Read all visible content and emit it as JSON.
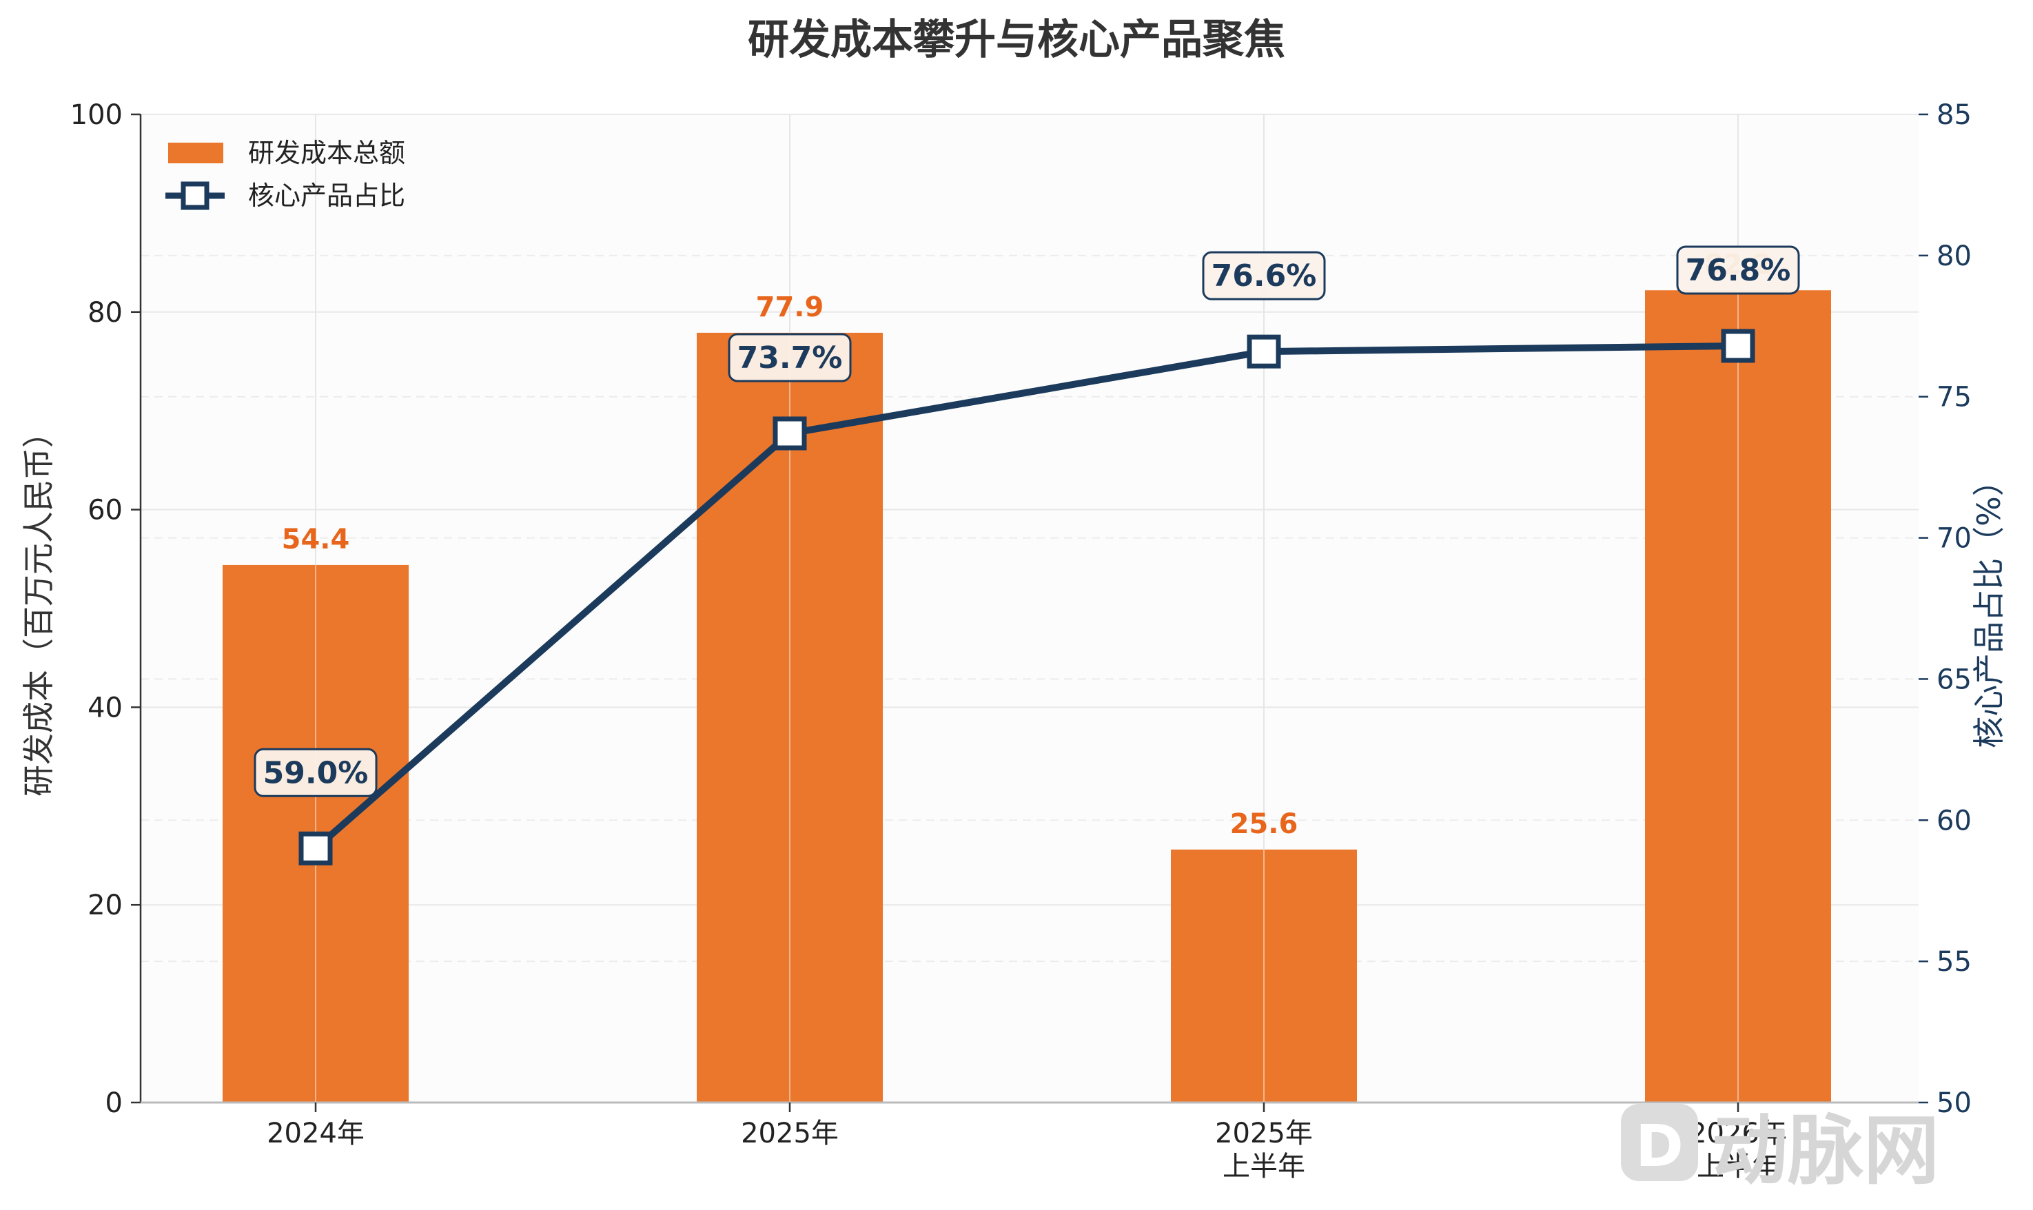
{
  "chart_data": {
    "type": "bar",
    "title": "研发成本攀升与核心产品聚焦",
    "categories": [
      [
        "2024年"
      ],
      [
        "2025年"
      ],
      [
        "2025年",
        "上半年"
      ],
      [
        "2026年",
        "上半年"
      ]
    ],
    "series": [
      {
        "name": "研发成本总额",
        "type": "bar",
        "axis": "left",
        "values": [
          54.4,
          77.9,
          25.6,
          82.2
        ],
        "labels": [
          "54.4",
          "77.9",
          "25.6",
          "82.2"
        ]
      },
      {
        "name": "核心产品占比",
        "type": "line",
        "axis": "right",
        "values": [
          59.0,
          73.7,
          76.6,
          76.8
        ],
        "labels": [
          "59.0%",
          "73.7%",
          "76.6%",
          "76.8%"
        ]
      }
    ],
    "ylabel": "研发成本（百万元人民币）",
    "y2label": "核心产品占比（%）",
    "ylim": [
      0,
      100
    ],
    "y2lim": [
      50,
      85
    ],
    "yticks": [
      "0",
      "20",
      "40",
      "60",
      "80",
      "100"
    ],
    "y2ticks": [
      "50",
      "55",
      "60",
      "65",
      "70",
      "75",
      "80",
      "85"
    ],
    "grid": true,
    "legend_position": "top-left",
    "colors": {
      "bar": "#eb772c",
      "bar_label": "#e8661c",
      "line": "#1b3a5c",
      "label_box_fill": "#fbf2ea"
    }
  },
  "watermark": {
    "brand": "动脉网"
  }
}
